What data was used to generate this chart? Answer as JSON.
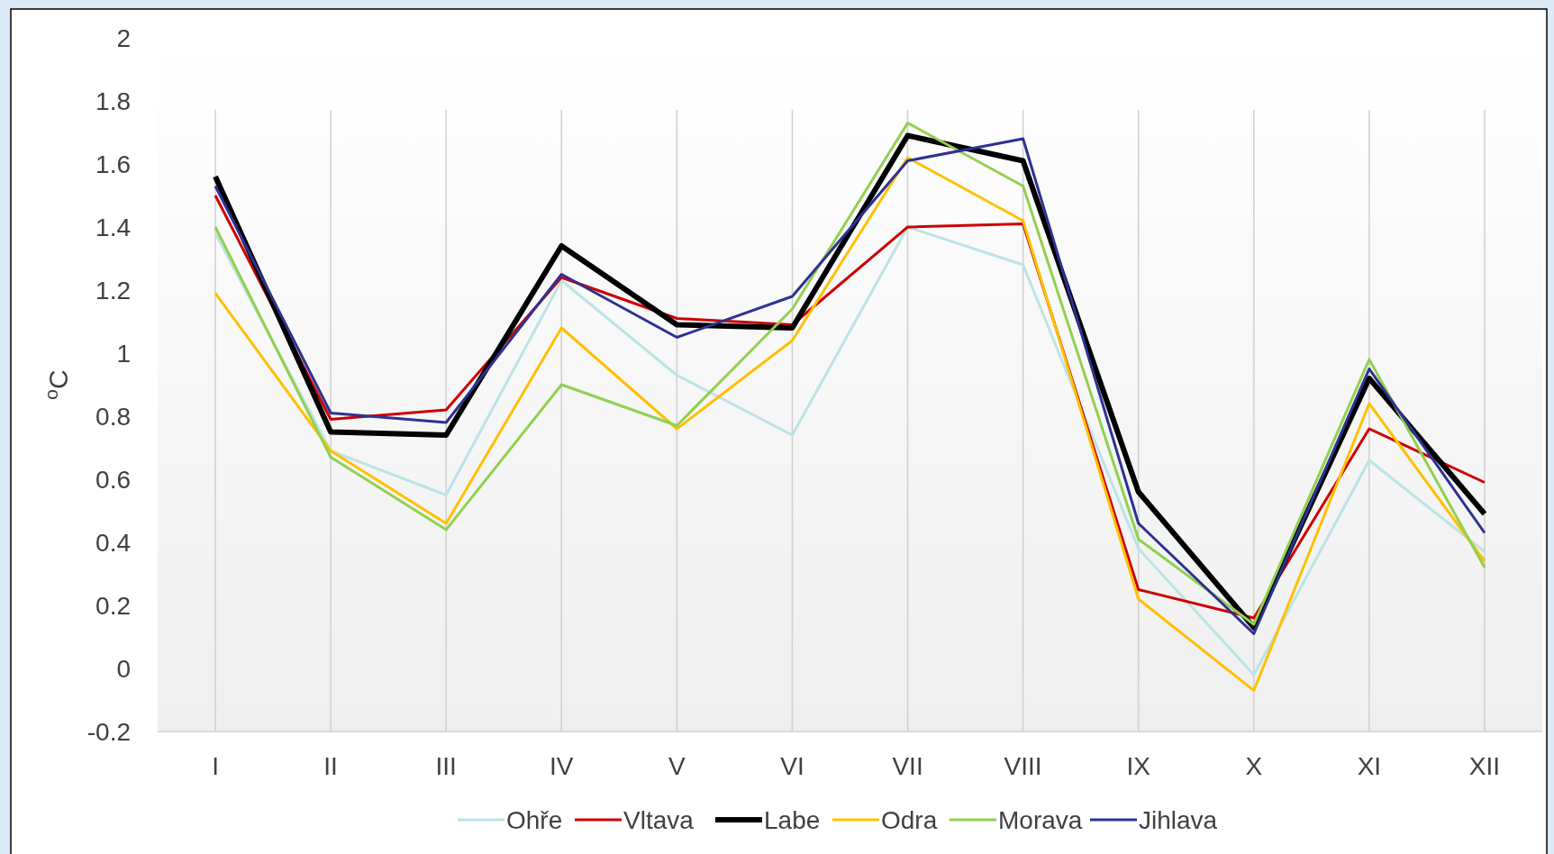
{
  "chart_data": {
    "type": "line",
    "ylabel": "$^{o}$C",
    "categories": [
      "I",
      "II",
      "III",
      "IV",
      "V",
      "VI",
      "VII",
      "VIII",
      "IX",
      "X",
      "XI",
      "XII"
    ],
    "series": [
      {
        "name": "Ohře",
        "color": "#bde3e6",
        "values": [
          1.38,
          0.69,
          0.55,
          1.23,
          0.93,
          0.74,
          1.4,
          1.28,
          0.38,
          -0.02,
          0.66,
          0.37
        ]
      },
      {
        "name": "Vltava",
        "color": "#cc0000",
        "values": [
          1.5,
          0.79,
          0.82,
          1.24,
          1.11,
          1.09,
          1.4,
          1.41,
          0.25,
          0.16,
          0.76,
          0.59
        ]
      },
      {
        "name": "Labe",
        "color": "#000000",
        "values": [
          1.56,
          0.75,
          0.74,
          1.34,
          1.09,
          1.08,
          1.69,
          1.61,
          0.56,
          0.13,
          0.92,
          0.49
        ]
      },
      {
        "name": "Odra",
        "color": "#ffc000",
        "values": [
          1.19,
          0.69,
          0.46,
          1.08,
          0.76,
          1.04,
          1.62,
          1.42,
          0.22,
          -0.07,
          0.84,
          0.34
        ]
      },
      {
        "name": "Morava",
        "color": "#92d050",
        "values": [
          1.4,
          0.67,
          0.44,
          0.9,
          0.77,
          1.14,
          1.73,
          1.53,
          0.41,
          0.14,
          0.98,
          0.32
        ]
      },
      {
        "name": "Jihlava",
        "color": "#2e3192",
        "values": [
          1.53,
          0.81,
          0.78,
          1.25,
          1.05,
          1.18,
          1.61,
          1.68,
          0.46,
          0.11,
          0.95,
          0.43
        ]
      }
    ],
    "ylim": [
      -0.2,
      2
    ],
    "yticks": [
      -0.2,
      0,
      0.2,
      0.4,
      0.6,
      0.8,
      1,
      1.2,
      1.4,
      1.6,
      1.8,
      2
    ],
    "grid": "x",
    "legend": "bottom",
    "marker": "none",
    "line_style": "solid"
  }
}
